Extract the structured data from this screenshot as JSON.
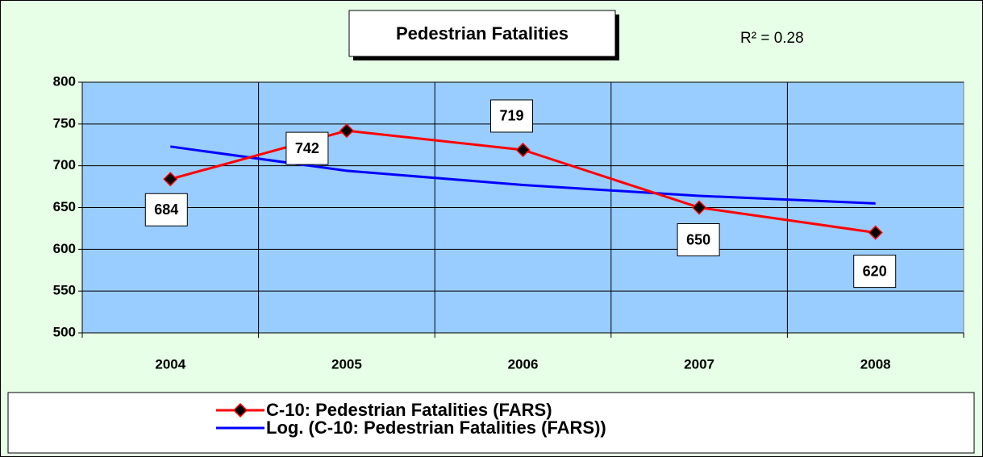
{
  "chart_data": {
    "type": "line",
    "title": "Pedestrian Fatalities",
    "annotation": "R² = 0.28",
    "categories": [
      "2004",
      "2005",
      "2006",
      "2007",
      "2008"
    ],
    "series": [
      {
        "name": "C-10:  Pedestrian Fatalities (FARS)",
        "color": "#ff0000",
        "values": [
          684,
          742,
          719,
          650,
          620
        ]
      },
      {
        "name": "Log. (C-10:  Pedestrian Fatalities (FARS))",
        "color": "#0000ff",
        "values": [
          723,
          694,
          677,
          664,
          655
        ]
      }
    ],
    "ylim": [
      500,
      800
    ],
    "yticks": [
      500,
      550,
      600,
      650,
      700,
      750,
      800
    ],
    "grid": true,
    "plot_color": "#99ccff",
    "background": "#e6ffe6"
  }
}
